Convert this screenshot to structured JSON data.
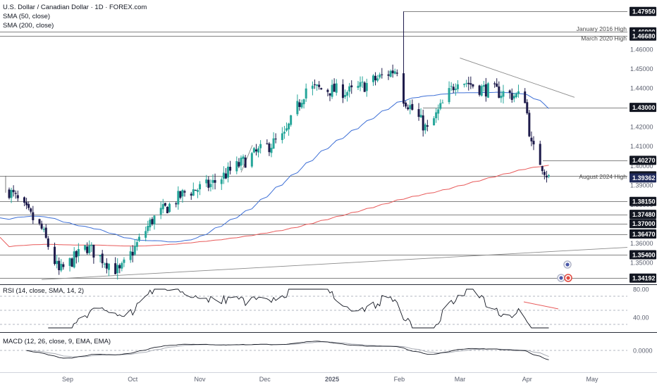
{
  "header": {
    "title": "U.S. Dollar / Canadian Dollar · 1D · FOREX.com",
    "sma50_label": "SMA (50, close)",
    "sma200_label": "SMA (200, close)"
  },
  "subpanes": {
    "rsi_label": "RSI (14, close, SMA, 14, 2)",
    "macd_label": "MACD (12, 26, close, 9, EMA, EMA)"
  },
  "colors": {
    "up": "#26a69a",
    "down": "#1e1b4b",
    "sma50": "#3d6fd6",
    "sma200": "#e85a5a",
    "level_line": "#5a5a5a",
    "trend_line": "#8a8a8a",
    "tag_bg": "#131722",
    "tag_text": "#ffffff",
    "current_tag": "#1f2a5a"
  },
  "chart_data": {
    "type": "candlestick",
    "symbol": "USDCAD",
    "x_ticks": [
      "Sep",
      "Oct",
      "Nov",
      "Dec",
      "2025",
      "Feb",
      "Mar",
      "Apr",
      "May"
    ],
    "y_ticks": [
      1.35,
      1.36,
      1.37,
      1.38,
      1.39,
      1.4,
      1.41,
      1.42,
      1.43,
      1.44,
      1.45,
      1.46
    ],
    "ylim": [
      1.339,
      1.485
    ],
    "tagged_levels": [
      {
        "value": "1.47950",
        "price": 1.4795
      },
      {
        "value": "1.46900",
        "price": 1.469
      },
      {
        "value": "1.46680",
        "price": 1.4668
      },
      {
        "value": "1.43000",
        "price": 1.43
      },
      {
        "value": "1.40270",
        "price": 1.4027
      },
      {
        "value": "1.39470",
        "price": 1.3947
      },
      {
        "value": "1.38150",
        "price": 1.3815
      },
      {
        "value": "1.37480",
        "price": 1.3748
      },
      {
        "value": "1.37000",
        "price": 1.37
      },
      {
        "value": "1.36470",
        "price": 1.3647
      },
      {
        "value": "1.35400",
        "price": 1.354
      },
      {
        "value": "1.34192",
        "price": 1.34192
      }
    ],
    "current_price": {
      "value": "1.39362",
      "price": 1.39362
    },
    "annotations": [
      {
        "text": "January 2016 High",
        "price": 1.469
      },
      {
        "text": "March 2020 High",
        "price": 1.4668
      },
      {
        "text": "August 2024 High",
        "price": 1.3947
      }
    ],
    "ohlc_anchors": [
      {
        "date": "2024-08-05",
        "close": 1.387
      },
      {
        "date": "2024-08-20",
        "close": 1.367
      },
      {
        "date": "2024-08-28",
        "close": 1.345
      },
      {
        "date": "2024-09-10",
        "close": 1.358
      },
      {
        "date": "2024-09-25",
        "close": 1.345
      },
      {
        "date": "2024-10-10",
        "close": 1.372
      },
      {
        "date": "2024-10-25",
        "close": 1.386
      },
      {
        "date": "2024-11-06",
        "close": 1.39
      },
      {
        "date": "2024-11-25",
        "close": 1.405
      },
      {
        "date": "2024-12-10",
        "close": 1.415
      },
      {
        "date": "2024-12-20",
        "close": 1.44
      },
      {
        "date": "2025-01-10",
        "close": 1.438
      },
      {
        "date": "2025-01-31",
        "close": 1.45
      },
      {
        "date": "2025-02-03",
        "close": 1.435
      },
      {
        "date": "2025-02-14",
        "close": 1.418
      },
      {
        "date": "2025-02-28",
        "close": 1.445
      },
      {
        "date": "2025-03-10",
        "close": 1.44
      },
      {
        "date": "2025-03-31",
        "close": 1.435
      },
      {
        "date": "2025-04-03",
        "close": 1.41
      },
      {
        "date": "2025-04-09",
        "close": 1.398
      },
      {
        "date": "2025-04-11",
        "close": 1.3936
      }
    ],
    "rsi": {
      "y_ticks": [
        80.0,
        40.0
      ],
      "ylim": [
        20,
        85
      ]
    },
    "macd": {
      "y_ticks": [
        0.0
      ],
      "ylim": [
        -0.025,
        0.02
      ]
    }
  }
}
